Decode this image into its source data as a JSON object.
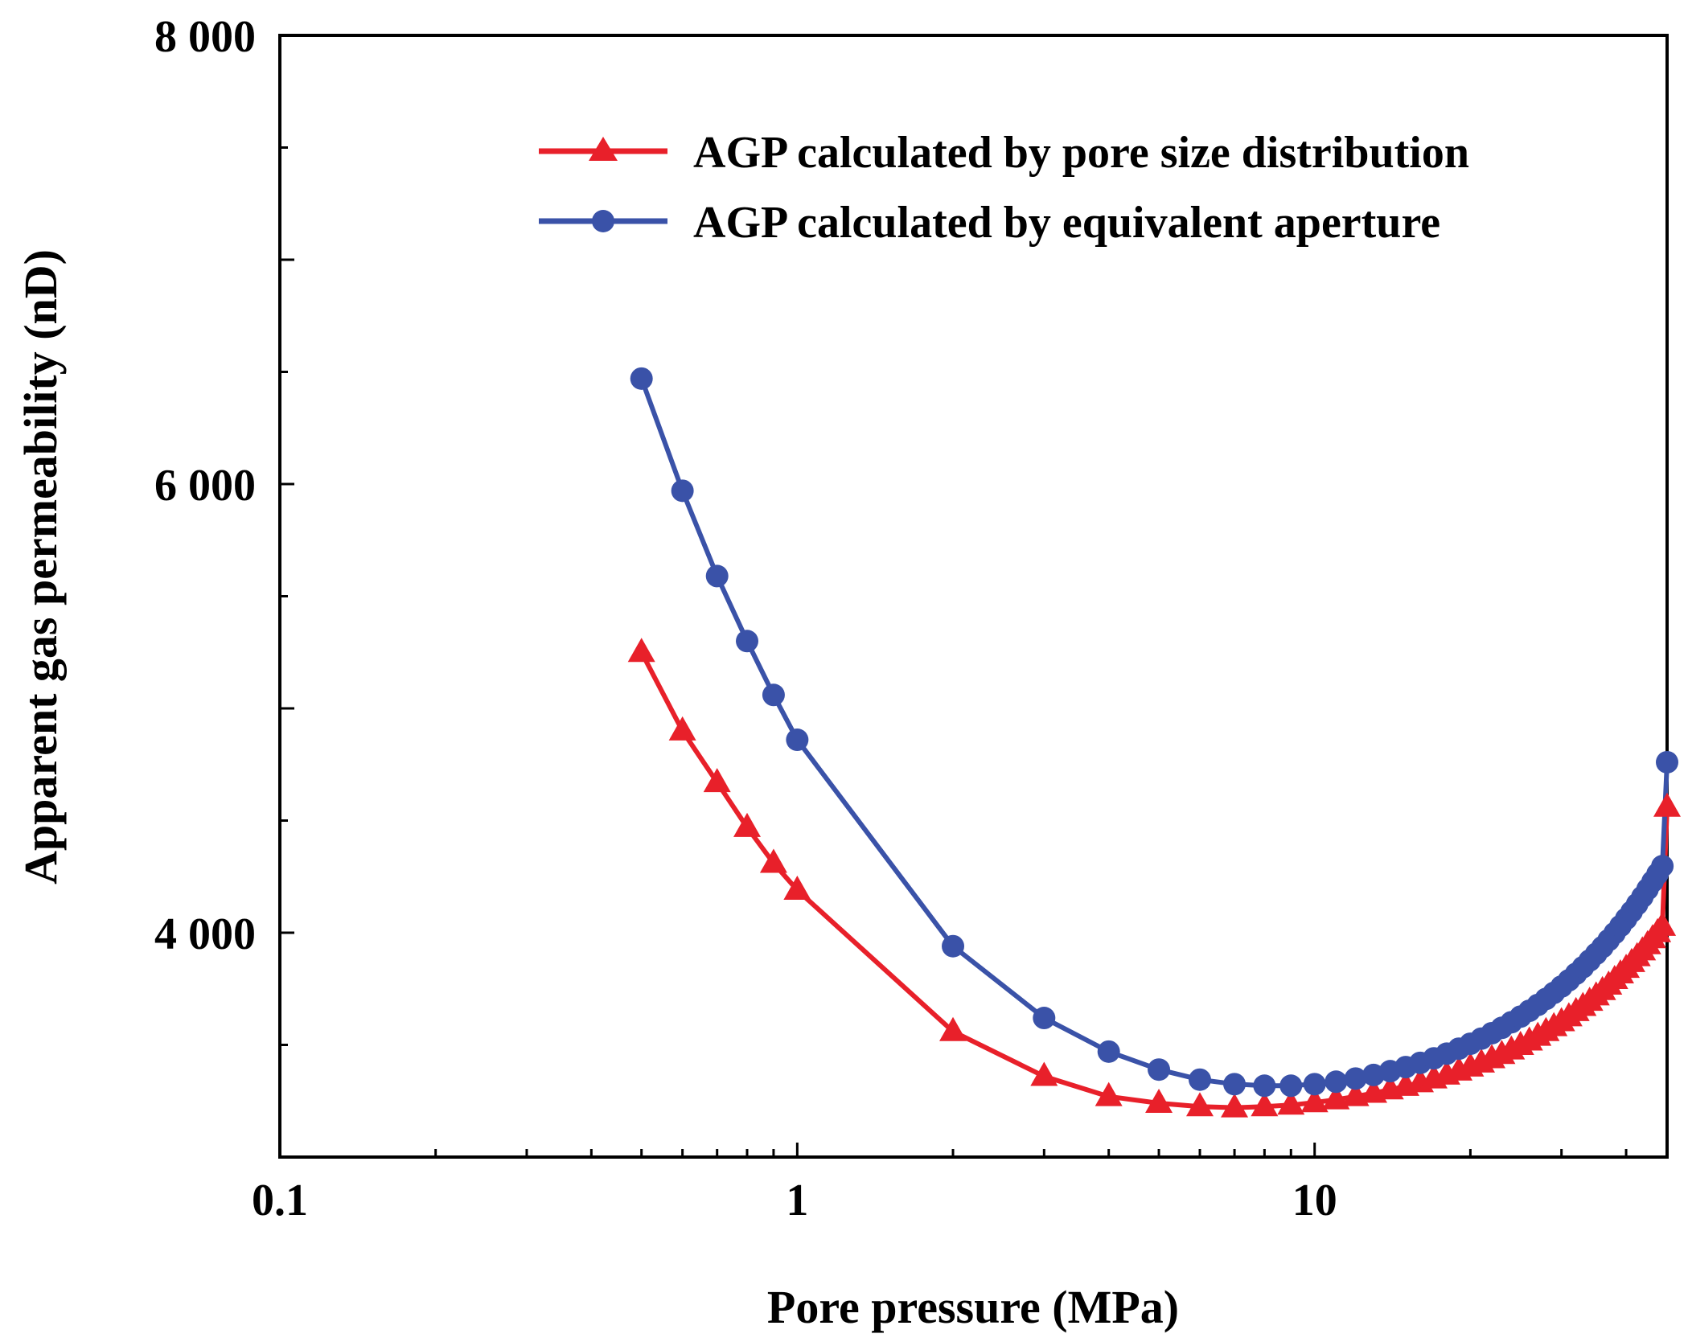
{
  "chart_data": {
    "type": "line",
    "title": "",
    "xlabel": "Pore pressure (MPa)",
    "ylabel": "Apparent gas permeability (nD)",
    "xscale": "log",
    "xlim": [
      0.1,
      48
    ],
    "ylim": [
      3000,
      8000
    ],
    "grid": false,
    "legend_position": "top-right",
    "x_ticks": [
      {
        "value": 0.1,
        "label": "0.1"
      },
      {
        "value": 1,
        "label": "1"
      },
      {
        "value": 10,
        "label": "10"
      }
    ],
    "y_ticks": [
      {
        "value": 4000,
        "label": "4 000"
      },
      {
        "value": 6000,
        "label": "6 000"
      },
      {
        "value": 8000,
        "label": "8 000"
      }
    ],
    "series": [
      {
        "name": "AGP calculated by pore size distribution",
        "color": "#e8202a",
        "marker": "triangle",
        "points": [
          [
            0.5,
            5250
          ],
          [
            0.6,
            4900
          ],
          [
            0.7,
            4670
          ],
          [
            0.8,
            4470
          ],
          [
            0.9,
            4310
          ],
          [
            1,
            4190
          ],
          [
            2,
            3560
          ],
          [
            3,
            3360
          ],
          [
            4,
            3270
          ],
          [
            5,
            3240
          ],
          [
            6,
            3225
          ],
          [
            7,
            3220
          ],
          [
            8,
            3225
          ],
          [
            9,
            3232
          ],
          [
            10,
            3243
          ],
          [
            11,
            3256
          ],
          [
            12,
            3270
          ],
          [
            13,
            3285
          ],
          [
            14,
            3300
          ],
          [
            15,
            3316
          ],
          [
            16,
            3332
          ],
          [
            17,
            3349
          ],
          [
            18,
            3366
          ],
          [
            19,
            3384
          ],
          [
            20,
            3402
          ],
          [
            21,
            3420
          ],
          [
            22,
            3439
          ],
          [
            23,
            3458
          ],
          [
            24,
            3478
          ],
          [
            25,
            3498
          ],
          [
            26,
            3518
          ],
          [
            27,
            3539
          ],
          [
            28,
            3560
          ],
          [
            29,
            3582
          ],
          [
            30,
            3604
          ],
          [
            31,
            3626
          ],
          [
            32,
            3649
          ],
          [
            33,
            3672
          ],
          [
            34,
            3695
          ],
          [
            35,
            3719
          ],
          [
            36,
            3743
          ],
          [
            37,
            3767
          ],
          [
            38,
            3792
          ],
          [
            39,
            3817
          ],
          [
            40,
            3842
          ],
          [
            41,
            3868
          ],
          [
            42,
            3894
          ],
          [
            43,
            3920
          ],
          [
            44,
            3947
          ],
          [
            45,
            3974
          ],
          [
            46,
            4001
          ],
          [
            47,
            4029
          ],
          [
            48,
            4560
          ]
        ]
      },
      {
        "name": "AGP calculated by equivalent aperture",
        "color": "#3a52a8",
        "marker": "circle",
        "points": [
          [
            0.5,
            6470
          ],
          [
            0.6,
            5970
          ],
          [
            0.7,
            5590
          ],
          [
            0.8,
            5300
          ],
          [
            0.9,
            5060
          ],
          [
            1,
            4860
          ],
          [
            2,
            3940
          ],
          [
            3,
            3620
          ],
          [
            4,
            3470
          ],
          [
            5,
            3390
          ],
          [
            6,
            3345
          ],
          [
            7,
            3325
          ],
          [
            8,
            3318
          ],
          [
            9,
            3318
          ],
          [
            10,
            3325
          ],
          [
            11,
            3336
          ],
          [
            12,
            3350
          ],
          [
            13,
            3366
          ],
          [
            14,
            3383
          ],
          [
            15,
            3401
          ],
          [
            16,
            3420
          ],
          [
            17,
            3440
          ],
          [
            18,
            3461
          ],
          [
            19,
            3483
          ],
          [
            20,
            3505
          ],
          [
            21,
            3528
          ],
          [
            22,
            3552
          ],
          [
            23,
            3576
          ],
          [
            24,
            3601
          ],
          [
            25,
            3626
          ],
          [
            26,
            3652
          ],
          [
            27,
            3678
          ],
          [
            28,
            3705
          ],
          [
            29,
            3732
          ],
          [
            30,
            3760
          ],
          [
            31,
            3788
          ],
          [
            32,
            3817
          ],
          [
            33,
            3846
          ],
          [
            34,
            3876
          ],
          [
            35,
            3906
          ],
          [
            36,
            3936
          ],
          [
            37,
            3967
          ],
          [
            38,
            3998
          ],
          [
            39,
            4030
          ],
          [
            40,
            4062
          ],
          [
            41,
            4094
          ],
          [
            42,
            4127
          ],
          [
            43,
            4160
          ],
          [
            44,
            4194
          ],
          [
            45,
            4228
          ],
          [
            46,
            4262
          ],
          [
            47,
            4297
          ],
          [
            48,
            4760
          ]
        ]
      }
    ]
  }
}
